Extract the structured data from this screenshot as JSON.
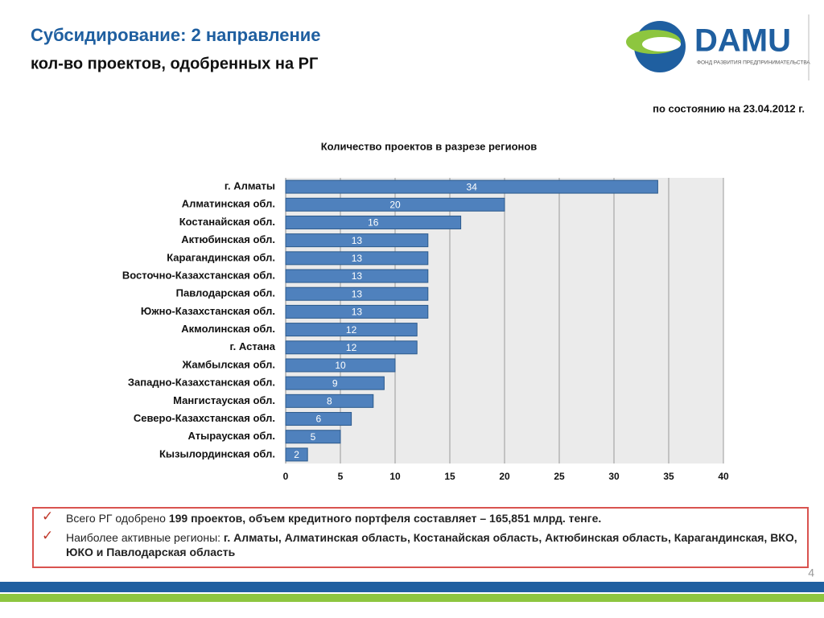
{
  "slide": {
    "title": "Субсидирование: 2 направление",
    "subtitle": "кол-во проектов, одобренных на РГ",
    "date_note": "по состоянию на 23.04.2012 г.",
    "logo_text": "DAMU",
    "logo_subtext": "ФОНД РАЗВИТИЯ ПРЕДПРИНИМАТЕЛЬСТВА",
    "page_number": "4",
    "bullets": [
      [
        "Всего РГ одобрено ",
        "199  проектов, объем кредитного портфеля составляет – 165,851 млрд. тенге."
      ],
      [
        "Наиболее активные регионы: ",
        "г. Алматы, Алматинская область, Костанайская область, Актюбинская область, Карагандинская, ВКО, ЮКО и Павлодарская область"
      ]
    ]
  },
  "chart_data": {
    "type": "hbar",
    "title": "Количество проектов в разрезе регионов",
    "categories": [
      "г. Алматы",
      "Алматинская обл.",
      "Костанайская обл.",
      "Актюбинская обл.",
      "Карагандинская обл.",
      "Восточно-Казахстанская обл.",
      "Павлодарская обл.",
      "Южно-Казахстанская обл.",
      "Акмолинская обл.",
      "г. Астана",
      "Жамбылская обл.",
      "Западно-Казахстанская обл.",
      "Мангистауская обл.",
      "Северо-Казахстанская обл.",
      "Атырауская обл.",
      "Кызылординская обл."
    ],
    "values": [
      34,
      20,
      16,
      13,
      13,
      13,
      13,
      13,
      12,
      12,
      10,
      9,
      8,
      6,
      5,
      2
    ],
    "color": "#4f81bd",
    "xlim": [
      0,
      40
    ],
    "xticks": [
      0,
      5,
      10,
      15,
      20,
      25,
      30,
      35,
      40
    ],
    "grid": true
  }
}
